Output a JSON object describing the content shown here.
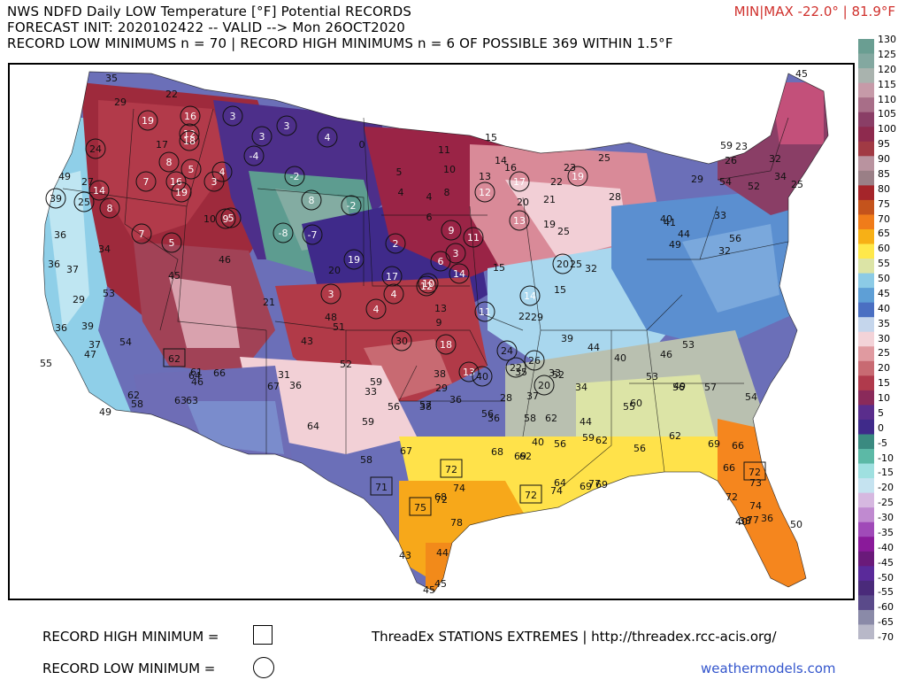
{
  "header": {
    "line1": "NWS NDFD Daily LOW Temperature [°F] Potential RECORDS",
    "line2": "FORECAST INIT: 2020102422 -- VALID --> Mon 26OCT2020",
    "line3": "RECORD LOW MINIMUMS n = 70 | RECORD HIGH MINIMUMS n = 6 OF POSSIBLE 369 WITHIN 1.5°F",
    "minmax": "MIN|MAX -22.0° | 81.9°F"
  },
  "colorbar": {
    "ticks": [
      "130",
      "125",
      "120",
      "115",
      "110",
      "105",
      "100",
      "95",
      "90",
      "85",
      "80",
      "75",
      "70",
      "65",
      "60",
      "55",
      "50",
      "45",
      "40",
      "35",
      "30",
      "25",
      "20",
      "15",
      "10",
      "5",
      "0",
      "-5",
      "-10",
      "-15",
      "-20",
      "-25",
      "-30",
      "-35",
      "-40",
      "-45",
      "-50",
      "-55",
      "-60",
      "-65",
      "-70"
    ],
    "colors": [
      "#6a9e92",
      "#83a8a0",
      "#a9b3ae",
      "#c69aa8",
      "#a86e88",
      "#8a3e66",
      "#8e2a4e",
      "#a13a44",
      "#b9939f",
      "#9a7f86",
      "#a5252a",
      "#c4531c",
      "#f07c1a",
      "#f7b016",
      "#ffe84a",
      "#dce4a6",
      "#8ccbe6",
      "#5e9fd6",
      "#4a6fc2",
      "#c5d6ec",
      "#f3d3d8",
      "#e09aa0",
      "#c86a72",
      "#b03a4c",
      "#8a2a5a",
      "#5a2d8c",
      "#3f2a8a",
      "#3a8a80",
      "#5cb9a6",
      "#9fe0e0",
      "#c5e3f0",
      "#d6b8e0",
      "#c08ad0",
      "#a04ab8",
      "#8a1a9a",
      "#6a1a7a",
      "#5a2a9a",
      "#4a2a7a",
      "#5a4a8a",
      "#8a8aa8",
      "#b8b8c8"
    ]
  },
  "legend": {
    "record_high": "RECORD HIGH MINIMUM =",
    "record_low": "RECORD LOW MINIMUM ="
  },
  "credit": "ThreadEx STATIONS EXTREMES | http://threadex.rcc-acis.org/",
  "site": "weathermodels.com",
  "stations": [
    {
      "v": "35",
      "m": ""
    },
    {
      "v": "29",
      "m": ""
    },
    {
      "v": "22",
      "m": ""
    },
    {
      "v": "19",
      "m": "low"
    },
    {
      "v": "16",
      "m": "low"
    },
    {
      "v": "12",
      "m": "low"
    },
    {
      "v": "18",
      "m": "low"
    },
    {
      "v": "3",
      "m": "low"
    },
    {
      "v": "3",
      "m": "low"
    },
    {
      "v": "3",
      "m": "low"
    },
    {
      "v": "4",
      "m": "low"
    },
    {
      "v": "0",
      "m": ""
    },
    {
      "v": "24",
      "m": "low"
    },
    {
      "v": "17",
      "m": ""
    },
    {
      "v": "8",
      "m": "low"
    },
    {
      "v": "5",
      "m": "low"
    },
    {
      "v": "4",
      "m": "low"
    },
    {
      "v": "-4",
      "m": "low"
    },
    {
      "v": "11",
      "m": ""
    },
    {
      "v": "15",
      "m": ""
    },
    {
      "v": "14",
      "m": ""
    },
    {
      "v": "16",
      "m": ""
    },
    {
      "v": "23",
      "m": ""
    },
    {
      "v": "25",
      "m": ""
    },
    {
      "v": "49",
      "m": ""
    },
    {
      "v": "27",
      "m": ""
    },
    {
      "v": "14",
      "m": "low"
    },
    {
      "v": "7",
      "m": "low"
    },
    {
      "v": "16",
      "m": "low"
    },
    {
      "v": "19",
      "m": "low"
    },
    {
      "v": "3",
      "m": "low"
    },
    {
      "v": "-2",
      "m": "low"
    },
    {
      "v": "5",
      "m": ""
    },
    {
      "v": "10",
      "m": ""
    },
    {
      "v": "13",
      "m": ""
    },
    {
      "v": "17",
      "m": "low"
    },
    {
      "v": "22",
      "m": ""
    },
    {
      "v": "19",
      "m": "low"
    },
    {
      "v": "39",
      "m": "low"
    },
    {
      "v": "25",
      "m": "low"
    },
    {
      "v": "8",
      "m": "low"
    },
    {
      "v": "10",
      "m": ""
    },
    {
      "v": "9",
      "m": "low"
    },
    {
      "v": "5",
      "m": "low"
    },
    {
      "v": "8",
      "m": "low"
    },
    {
      "v": "-2",
      "m": "low"
    },
    {
      "v": "4",
      "m": ""
    },
    {
      "v": "4",
      "m": ""
    },
    {
      "v": "8",
      "m": ""
    },
    {
      "v": "12",
      "m": "low"
    },
    {
      "v": "20",
      "m": ""
    },
    {
      "v": "21",
      "m": ""
    },
    {
      "v": "28",
      "m": ""
    },
    {
      "v": "36",
      "m": ""
    },
    {
      "v": "7",
      "m": "low"
    },
    {
      "v": "5",
      "m": "low"
    },
    {
      "v": "-8",
      "m": "low"
    },
    {
      "v": "-7",
      "m": "low"
    },
    {
      "v": "2",
      "m": "low"
    },
    {
      "v": "6",
      "m": ""
    },
    {
      "v": "9",
      "m": "low"
    },
    {
      "v": "11",
      "m": "low"
    },
    {
      "v": "13",
      "m": "low"
    },
    {
      "v": "19",
      "m": ""
    },
    {
      "v": "25",
      "m": ""
    },
    {
      "v": "29",
      "m": ""
    },
    {
      "v": "34",
      "m": ""
    },
    {
      "v": "46",
      "m": ""
    },
    {
      "v": "20",
      "m": ""
    },
    {
      "v": "19",
      "m": "low"
    },
    {
      "v": "6",
      "m": "low"
    },
    {
      "v": "3",
      "m": "low"
    },
    {
      "v": "14",
      "m": "low"
    },
    {
      "v": "15",
      "m": ""
    },
    {
      "v": "20",
      "m": "low"
    },
    {
      "v": "25",
      "m": ""
    },
    {
      "v": "32",
      "m": ""
    },
    {
      "v": "36",
      "m": ""
    },
    {
      "v": "37",
      "m": ""
    },
    {
      "v": "53",
      "m": ""
    },
    {
      "v": "45",
      "m": ""
    },
    {
      "v": "21",
      "m": ""
    },
    {
      "v": "3",
      "m": "low"
    },
    {
      "v": "17",
      "m": "low"
    },
    {
      "v": "4",
      "m": "low"
    },
    {
      "v": "10",
      "m": "low"
    },
    {
      "v": "12",
      "m": "low"
    },
    {
      "v": "14",
      "m": "low"
    },
    {
      "v": "15",
      "m": ""
    },
    {
      "v": "36",
      "m": ""
    },
    {
      "v": "39",
      "m": ""
    },
    {
      "v": "48",
      "m": ""
    },
    {
      "v": "51",
      "m": ""
    },
    {
      "v": "4",
      "m": "low"
    },
    {
      "v": "13",
      "m": ""
    },
    {
      "v": "11",
      "m": "low"
    },
    {
      "v": "22",
      "m": ""
    },
    {
      "v": "29",
      "m": ""
    },
    {
      "v": "37",
      "m": ""
    },
    {
      "v": "43",
      "m": ""
    },
    {
      "v": "30",
      "m": "low"
    },
    {
      "v": "9",
      "m": ""
    },
    {
      "v": "18",
      "m": "low"
    },
    {
      "v": "24",
      "m": "low"
    },
    {
      "v": "26",
      "m": "low"
    },
    {
      "v": "39",
      "m": ""
    },
    {
      "v": "44",
      "m": ""
    },
    {
      "v": "47",
      "m": ""
    },
    {
      "v": "62",
      "m": "high"
    },
    {
      "v": "52",
      "m": ""
    },
    {
      "v": "36",
      "m": ""
    },
    {
      "v": "13",
      "m": "low"
    },
    {
      "v": "33",
      "m": ""
    },
    {
      "v": "40",
      "m": ""
    },
    {
      "v": "46",
      "m": ""
    },
    {
      "v": "53",
      "m": ""
    },
    {
      "v": "55",
      "m": ""
    },
    {
      "v": "54",
      "m": ""
    },
    {
      "v": "49",
      "m": ""
    },
    {
      "v": "31",
      "m": ""
    },
    {
      "v": "38",
      "m": ""
    },
    {
      "v": "40",
      "m": "low"
    },
    {
      "v": "22",
      "m": "low"
    },
    {
      "v": "20",
      "m": "low"
    },
    {
      "v": "34",
      "m": ""
    },
    {
      "v": "44",
      "m": ""
    },
    {
      "v": "49",
      "m": ""
    },
    {
      "v": "64",
      "m": ""
    },
    {
      "v": "61",
      "m": ""
    },
    {
      "v": "66",
      "m": ""
    },
    {
      "v": "46",
      "m": ""
    },
    {
      "v": "59",
      "m": ""
    },
    {
      "v": "33",
      "m": ""
    },
    {
      "v": "29",
      "m": ""
    },
    {
      "v": "35",
      "m": ""
    },
    {
      "v": "52",
      "m": ""
    },
    {
      "v": "53",
      "m": ""
    },
    {
      "v": "56",
      "m": ""
    },
    {
      "v": "57",
      "m": ""
    },
    {
      "v": "62",
      "m": ""
    },
    {
      "v": "63",
      "m": ""
    },
    {
      "v": "67",
      "m": ""
    },
    {
      "v": "56",
      "m": ""
    },
    {
      "v": "57",
      "m": ""
    },
    {
      "v": "36",
      "m": ""
    },
    {
      "v": "28",
      "m": ""
    },
    {
      "v": "37",
      "m": ""
    },
    {
      "v": "55",
      "m": ""
    },
    {
      "v": "54",
      "m": ""
    },
    {
      "v": "58",
      "m": ""
    },
    {
      "v": "63",
      "m": ""
    },
    {
      "v": "64",
      "m": ""
    },
    {
      "v": "59",
      "m": ""
    },
    {
      "v": "38",
      "m": ""
    },
    {
      "v": "36",
      "m": ""
    },
    {
      "v": "58",
      "m": ""
    },
    {
      "v": "62",
      "m": ""
    },
    {
      "v": "60",
      "m": ""
    },
    {
      "v": "56",
      "m": ""
    },
    {
      "v": "56",
      "m": ""
    },
    {
      "v": "58",
      "m": ""
    },
    {
      "v": "67",
      "m": ""
    },
    {
      "v": "68",
      "m": ""
    },
    {
      "v": "69",
      "m": ""
    },
    {
      "v": "40",
      "m": ""
    },
    {
      "v": "56",
      "m": ""
    },
    {
      "v": "59",
      "m": ""
    },
    {
      "v": "62",
      "m": ""
    },
    {
      "v": "66",
      "m": ""
    },
    {
      "v": "62",
      "m": ""
    },
    {
      "v": "69",
      "m": ""
    },
    {
      "v": "71",
      "m": "high"
    },
    {
      "v": "72",
      "m": "high"
    },
    {
      "v": "62",
      "m": ""
    },
    {
      "v": "64",
      "m": ""
    },
    {
      "v": "69",
      "m": ""
    },
    {
      "v": "69",
      "m": ""
    },
    {
      "v": "66",
      "m": ""
    },
    {
      "v": "72",
      "m": "high"
    },
    {
      "v": "73",
      "m": ""
    },
    {
      "v": "68",
      "m": ""
    },
    {
      "v": "72",
      "m": ""
    },
    {
      "v": "74",
      "m": ""
    },
    {
      "v": "72",
      "m": "high"
    },
    {
      "v": "74",
      "m": ""
    },
    {
      "v": "77",
      "m": ""
    },
    {
      "v": "72",
      "m": ""
    },
    {
      "v": "74",
      "m": ""
    },
    {
      "v": "75",
      "m": "high"
    },
    {
      "v": "78",
      "m": ""
    },
    {
      "v": "77",
      "m": ""
    },
    {
      "v": "40",
      "m": ""
    },
    {
      "v": "38",
      "m": ""
    },
    {
      "v": "36",
      "m": ""
    },
    {
      "v": "43",
      "m": ""
    },
    {
      "v": "44",
      "m": ""
    },
    {
      "v": "45",
      "m": ""
    },
    {
      "v": "45",
      "m": ""
    },
    {
      "v": "50",
      "m": ""
    },
    {
      "v": "52",
      "m": ""
    },
    {
      "v": "54",
      "m": ""
    },
    {
      "v": "29",
      "m": ""
    },
    {
      "v": "33",
      "m": ""
    },
    {
      "v": "32",
      "m": ""
    },
    {
      "v": "40",
      "m": ""
    },
    {
      "v": "41",
      "m": ""
    },
    {
      "v": "44",
      "m": ""
    },
    {
      "v": "49",
      "m": ""
    },
    {
      "v": "56",
      "m": ""
    },
    {
      "v": "59",
      "m": ""
    },
    {
      "v": "23",
      "m": ""
    },
    {
      "v": "25",
      "m": ""
    },
    {
      "v": "26",
      "m": ""
    },
    {
      "v": "34",
      "m": ""
    },
    {
      "v": "32",
      "m": ""
    },
    {
      "v": "45",
      "m": ""
    }
  ]
}
